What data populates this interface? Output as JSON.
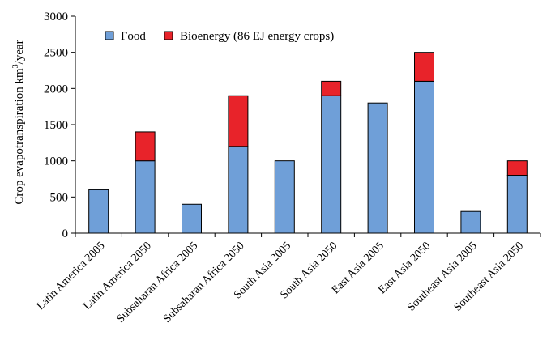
{
  "chart_data": {
    "type": "bar",
    "stacked": true,
    "categories": [
      "Latin America 2005",
      "Latin America 2050",
      "Subsaharan Africa 2005",
      "Subsaharan Africa 2050",
      "South Asia 2005",
      "South Asia 2050",
      "East Asia 2005",
      "East Asia 2050",
      "Southeast Asia 2005",
      "Southeast Asia 2050"
    ],
    "series": [
      {
        "name": "Food",
        "color": "#6f9fd8",
        "values": [
          600,
          1000,
          400,
          1200,
          1000,
          1900,
          1800,
          2100,
          300,
          800
        ]
      },
      {
        "name": "Bioenergy (86 EJ energy crops)",
        "color": "#e8232a",
        "values": [
          0,
          400,
          0,
          700,
          0,
          200,
          0,
          400,
          0,
          200
        ]
      }
    ],
    "ylabel": "Crop evapotranspiration km",
    "ylabel_superscript": "3",
    "ylabel_suffix": "/year",
    "xlabel": "",
    "title": "",
    "ylim": [
      0,
      3000
    ],
    "yticks": [
      "0",
      "500",
      "1000",
      "1500",
      "2000",
      "2500",
      "3000"
    ],
    "grid": false,
    "legend_position": "top-left"
  }
}
